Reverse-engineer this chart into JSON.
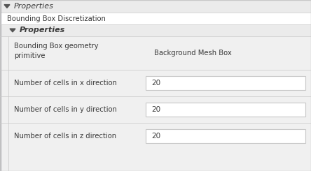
{
  "fig_w": 4.44,
  "fig_h": 2.45,
  "dpi": 100,
  "bg_outer": "#f5f5f5",
  "bg_white": "#ffffff",
  "bg_gray": "#ebebeb",
  "bg_inner": "#f0f0f0",
  "border_color": "#c8c8c8",
  "text_dark": "#3a3a3a",
  "text_gray": "#555555",
  "title1": "Properties",
  "title2": "Bounding Box Discretization",
  "title3": "Properties",
  "row1_label_l1": "Bounding Box geometry",
  "row1_label_l2": "primitive",
  "row1_value": "Background Mesh Box",
  "row2_label": "Number of cells in x direction",
  "row3_label": "Number of cells in y direction",
  "row4_label": "Number of cells in z direction",
  "cell_value": "20",
  "tri_color": "#555555",
  "font_title": 8.0,
  "font_body": 7.2,
  "font_cell": 7.5
}
